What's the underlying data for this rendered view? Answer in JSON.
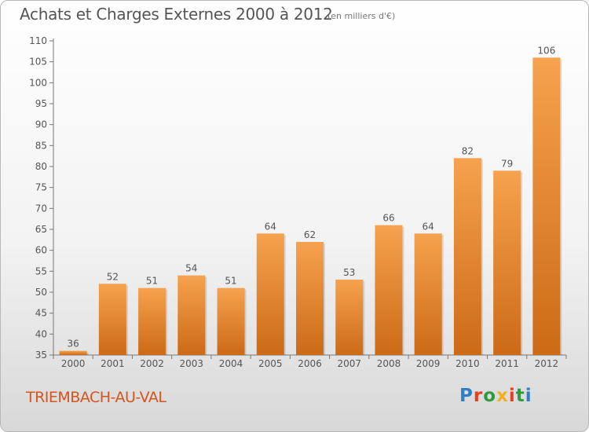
{
  "header": {
    "title": "Achats et Charges Externes 2000 à 2012",
    "subtitle": "(en milliers d'€)"
  },
  "footer": {
    "commune": "TRIEMBACH-AU-VAL",
    "logo_text": "Proxiti",
    "logo_letter_colors": [
      "#2d7fc6",
      "#e8401c",
      "#2e9a3d",
      "#f2b01e",
      "#e8401c",
      "#2e9a3d",
      "#2d7fc6"
    ]
  },
  "colors": {
    "bar_top": "#f6a24e",
    "bar_bottom": "#cc6a16",
    "axis": "#777777",
    "text": "#555555",
    "commune_text": "#d6541e"
  },
  "chart_data": {
    "type": "bar",
    "title": "Achats et Charges Externes 2000 à 2012",
    "subtitle": "(en milliers d'€)",
    "xlabel": "",
    "ylabel": "",
    "categories": [
      "2000",
      "2001",
      "2002",
      "2003",
      "2004",
      "2005",
      "2006",
      "2007",
      "2008",
      "2009",
      "2010",
      "2011",
      "2012"
    ],
    "values": [
      36,
      52,
      51,
      54,
      51,
      64,
      62,
      53,
      66,
      64,
      82,
      79,
      106
    ],
    "ylim": [
      35,
      110
    ],
    "yticks": [
      35,
      40,
      45,
      50,
      55,
      60,
      65,
      70,
      75,
      80,
      85,
      90,
      95,
      100,
      105,
      110
    ],
    "grid": false,
    "legend": "none"
  }
}
